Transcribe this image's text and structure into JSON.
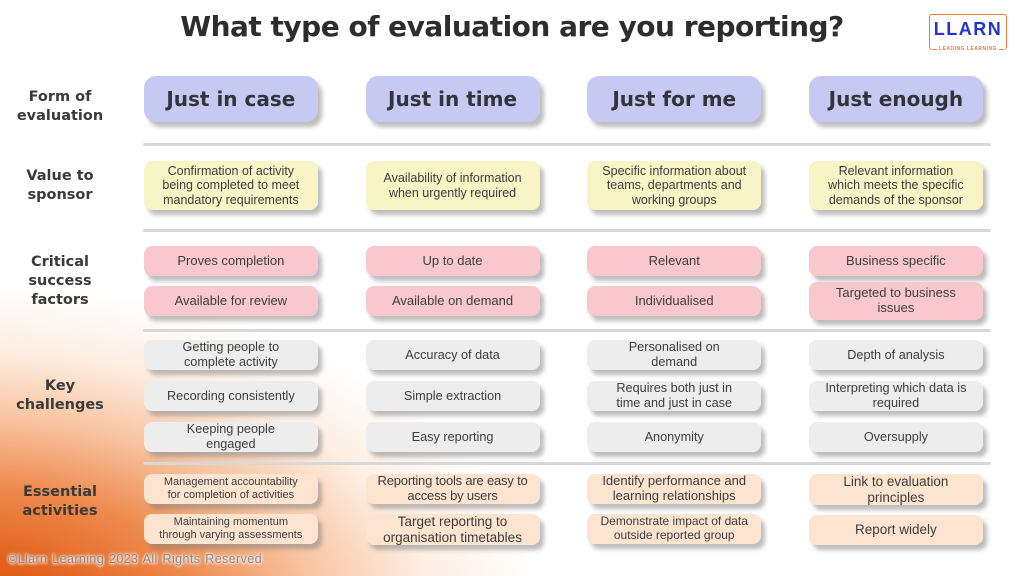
{
  "title": "What type of evaluation are you reporting?",
  "logo": {
    "name": "LLARN",
    "tagline": "LEADING LEARNING"
  },
  "footer": "©Llarn Learning 2023 All Rights Reserved",
  "colors": {
    "form": "#c6c9f2",
    "value": "#f9f4c6",
    "critical": "#f8c8ce",
    "key": "#ededed",
    "essential": "#fce4d1",
    "accent_orange": "#e4570e",
    "logo_blue": "#2333d4",
    "logo_orange": "#ef7b3a"
  },
  "table": {
    "rows": [
      {
        "key": "form-of-evaluation",
        "label": "Form of evaluation",
        "cells": [
          [
            "Just in case"
          ],
          [
            "Just in time"
          ],
          [
            "Just for me"
          ],
          [
            "Just enough"
          ]
        ]
      },
      {
        "key": "value-to-sponsor",
        "label": "Value to sponsor",
        "cells": [
          [
            "Confirmation of activity being completed to meet mandatory requirements"
          ],
          [
            "Availability of information when urgently required"
          ],
          [
            "Specific information about teams, departments and working groups"
          ],
          [
            "Relevant information which meets the specific demands of the sponsor"
          ]
        ]
      },
      {
        "key": "critical-success-factors",
        "label": "Critical success factors",
        "cells": [
          [
            "Proves completion",
            "Available for review"
          ],
          [
            "Up to date",
            "Available on demand"
          ],
          [
            "Relevant",
            "Individualised"
          ],
          [
            "Business specific",
            "Targeted to business issues"
          ]
        ]
      },
      {
        "key": "key-challenges",
        "label": "Key challenges",
        "cells": [
          [
            "Getting people to complete activity",
            "Recording consistently",
            "Keeping people engaged"
          ],
          [
            "Accuracy of data",
            "Simple extraction",
            "Easy reporting"
          ],
          [
            "Personalised on demand",
            "Requires both just in time and just in case",
            "Anonymity"
          ],
          [
            "Depth of analysis",
            "Interpreting which data is required",
            "Oversupply"
          ]
        ]
      },
      {
        "key": "essential-activities",
        "label": "Essential activities",
        "cells": [
          [
            "Management accountability for completion of activities",
            "Maintaining momentum through varying assessments"
          ],
          [
            "Reporting tools are easy to access by users",
            "Target reporting to organisation timetables"
          ],
          [
            "Identify performance and learning relationships",
            "Demonstrate impact of data outside reported group"
          ],
          [
            "Link to evaluation principles",
            "Report widely"
          ]
        ]
      }
    ]
  }
}
